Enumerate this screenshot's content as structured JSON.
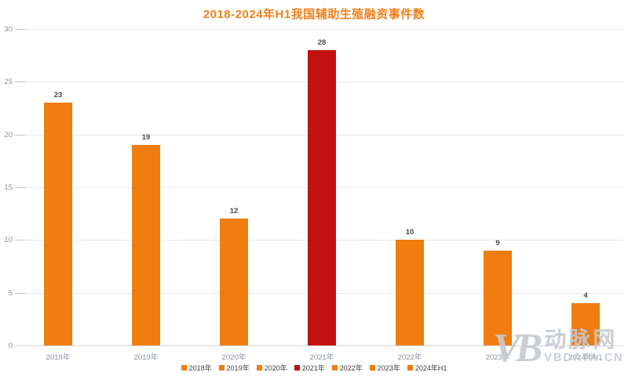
{
  "chart_data": {
    "type": "bar",
    "title": "2018-2024年H1我国辅助生殖融资事件数",
    "categories": [
      "2018年",
      "2019年",
      "2020年",
      "2021年",
      "2022年",
      "2023年",
      "2024年H1"
    ],
    "values": [
      23,
      19,
      12,
      28,
      10,
      9,
      4
    ],
    "bar_colors": [
      "#EF7D10",
      "#EF7D10",
      "#EF7D10",
      "#C21111",
      "#EF7D10",
      "#EF7D10",
      "#EF7D10"
    ],
    "xlabel": "",
    "ylabel": "",
    "ylim": [
      0,
      30
    ],
    "yticks": [
      0,
      5,
      10,
      15,
      20,
      25,
      30
    ],
    "grid": true,
    "legend_position": "bottom",
    "legend": [
      "2018年",
      "2019年",
      "2020年",
      "2021年",
      "2022年",
      "2023年",
      "2024年H1"
    ]
  },
  "colors": {
    "accent_orange": "#EF7D10",
    "highlight_red": "#C21111",
    "title": "#F0801C",
    "axis_label": "#8A919C",
    "value_label": "#444B55",
    "gridline": "#E7E7EC",
    "watermark": "#C4C9D0"
  },
  "watermark": {
    "logo": "VB",
    "name": "动脉网",
    "domain": "VBDATA.CN"
  }
}
